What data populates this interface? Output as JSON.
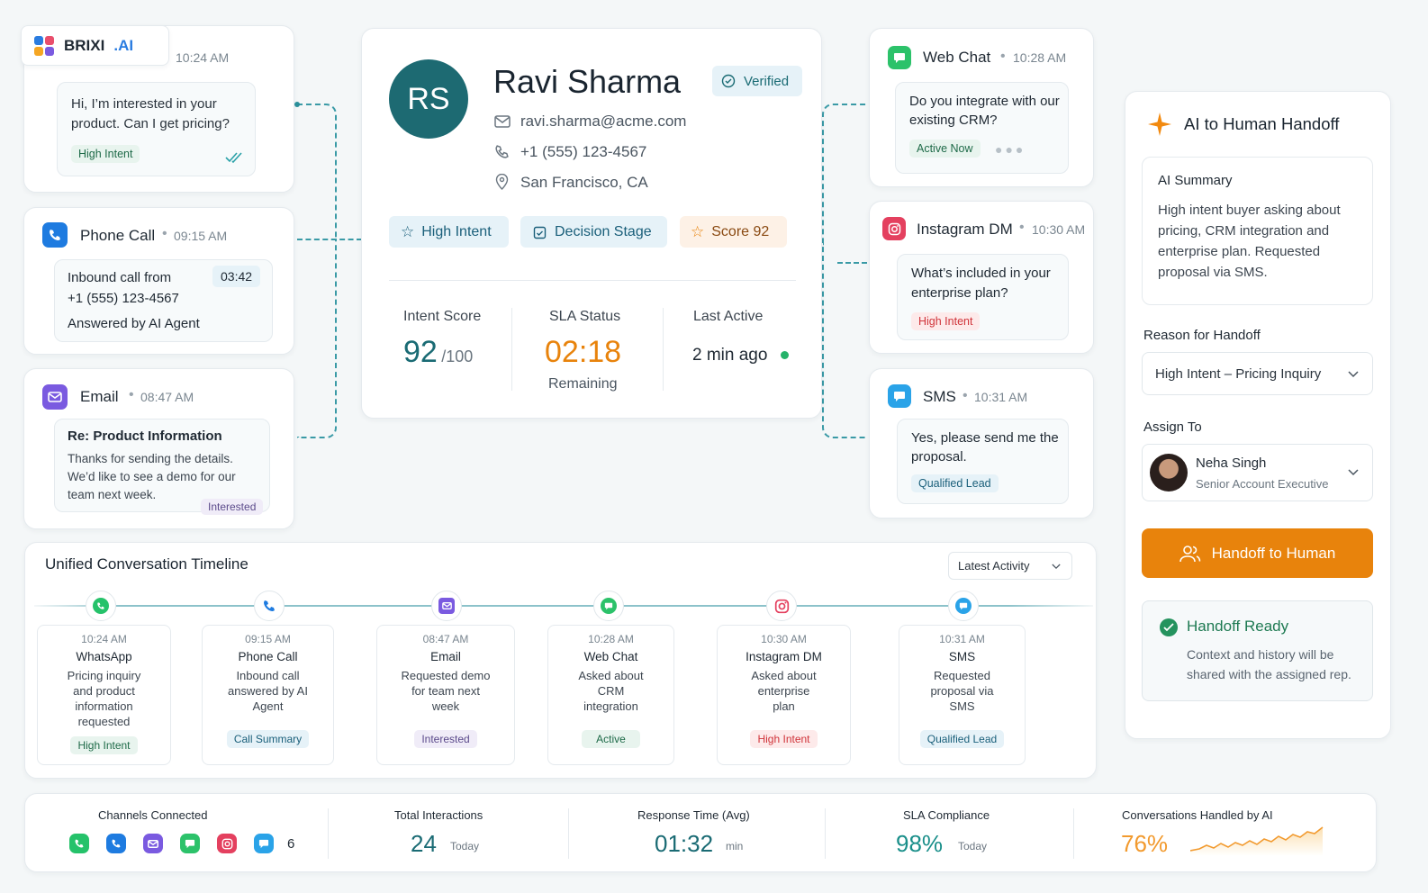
{
  "brand": {
    "name": "BRIXI",
    "suffix": ".AI"
  },
  "whatsapp": {
    "time": "10:24 AM",
    "message": "Hi, I’m interested in your product. Can I get pricing?",
    "badge": "High Intent"
  },
  "phone": {
    "title": "Phone Call",
    "time": "09:15 AM",
    "line1": "Inbound call from",
    "line2": "+1 (555) 123-4567",
    "line3": "Answered by AI Agent",
    "duration": "03:42"
  },
  "email": {
    "title": "Email",
    "time": "08:47 AM",
    "subject": "Re: Product Information",
    "body": "Thanks for sending the details. We’d like to see a demo for our team next week.",
    "badge": "Interested"
  },
  "profile": {
    "initials": "RS",
    "name": "Ravi Sharma",
    "verified": "Verified",
    "email": "ravi.sharma@acme.com",
    "phone": "+1 (555) 123-4567",
    "location": "San Francisco, CA",
    "tags": {
      "intent": "High Intent",
      "stage": "Decision Stage",
      "score": "Score 92"
    },
    "stats": {
      "intent_label": "Intent Score",
      "intent_value": "92",
      "intent_max": "/100",
      "sla_label": "SLA Status",
      "sla_value": "02:18",
      "sla_sub": "Remaining",
      "active_label": "Last Active",
      "active_value": "2 min ago"
    }
  },
  "webchat": {
    "title": "Web Chat",
    "time": "10:28 AM",
    "message": "Do you integrate with our existing CRM?",
    "badge": "Active Now"
  },
  "instagram": {
    "title": "Instagram DM",
    "time": "10:30 AM",
    "message": "What’s included in your enterprise plan?",
    "badge": "High Intent"
  },
  "sms": {
    "title": "SMS",
    "time": "10:31 AM",
    "message": "Yes, please send me the proposal.",
    "badge": "Qualified Lead"
  },
  "handoff": {
    "title": "AI to Human Handoff",
    "summary_title": "AI Summary",
    "summary": "High intent buyer asking about pricing, CRM integration and enterprise plan. Requested proposal via SMS.",
    "reason_label": "Reason for Handoff",
    "reason_value": "High Intent – Pricing Inquiry",
    "assign_label": "Assign To",
    "assignee_name": "Neha Singh",
    "assignee_role": "Senior Account Executive",
    "button": "Handoff to Human",
    "ready_title": "Handoff Ready",
    "ready_text": "Context and history will be shared with the assigned rep."
  },
  "timeline": {
    "title": "Unified Conversation Timeline",
    "filter": "Latest Activity",
    "items": [
      {
        "time": "10:24 AM",
        "channel": "WhatsApp",
        "desc": "Pricing inquiry and product information requested",
        "badge": "High Intent"
      },
      {
        "time": "09:15 AM",
        "channel": "Phone Call",
        "desc": "Inbound call answered by AI Agent",
        "badge": "Call Summary"
      },
      {
        "time": "08:47 AM",
        "channel": "Email",
        "desc": "Requested demo for team next week",
        "badge": "Interested"
      },
      {
        "time": "10:28 AM",
        "channel": "Web Chat",
        "desc": "Asked about CRM integration",
        "badge": "Active"
      },
      {
        "time": "10:30 AM",
        "channel": "Instagram DM",
        "desc": "Asked about enterprise plan",
        "badge": "High Intent"
      },
      {
        "time": "10:31 AM",
        "channel": "SMS",
        "desc": "Requested proposal via SMS",
        "badge": "Qualified Lead"
      }
    ]
  },
  "stats_bar": {
    "channels_label": "Channels Connected",
    "channels_count": "6",
    "interactions_label": "Total Interactions",
    "interactions_value": "24",
    "interactions_sub": "Today",
    "response_label": "Response Time (Avg)",
    "response_value": "01:32",
    "response_sub": "min",
    "sla_label": "SLA Compliance",
    "sla_value": "98%",
    "sla_sub": "Today",
    "ai_label": "Conversations Handled by AI",
    "ai_value": "76%"
  },
  "colors": {
    "teal": "#1a6b74",
    "orange": "#e8830c",
    "whatsapp": "#25c26a",
    "phone": "#1e7be0",
    "email": "#7a5ae0",
    "webchat": "#2cc26a",
    "instagram": "#e4405f",
    "sms": "#2aa3e8"
  }
}
